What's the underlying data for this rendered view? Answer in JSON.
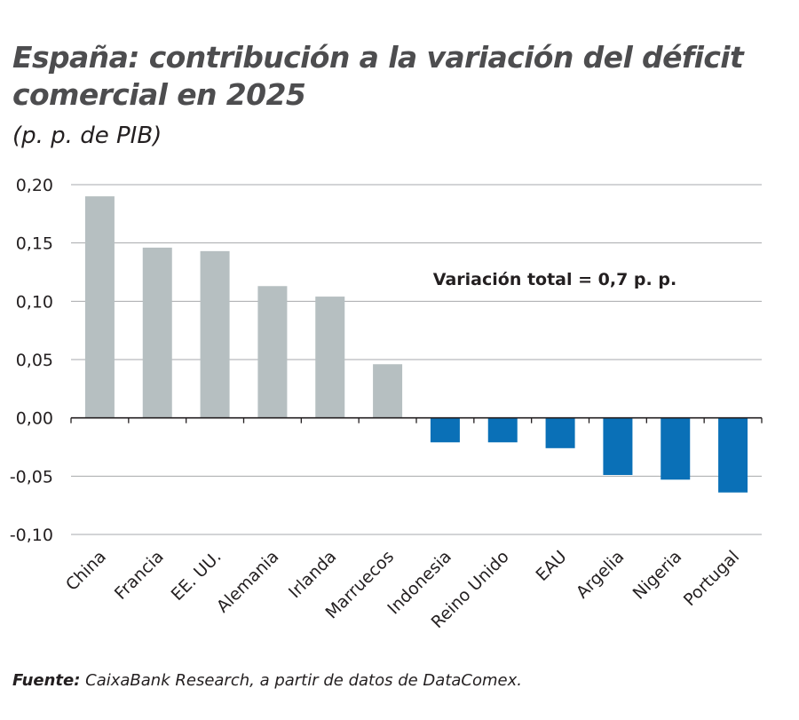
{
  "title": "España: contribución a la variación del déficit comercial en 2025",
  "subtitle": "(p. p. de PIB)",
  "source": {
    "label": "Fuente:",
    "text": " CaixaBank Research, a partir de datos de DataComex."
  },
  "colors": {
    "positive": "#b6bfc1",
    "negative": "#0a70b7",
    "grid": "#a7a9ac",
    "axis": "#231f20"
  },
  "chart_data": {
    "type": "bar",
    "title": "España: contribución a la variación del déficit comercial en 2025",
    "subtitle": "(p. p. de PIB)",
    "categories": [
      "China",
      "Francia",
      "EE. UU.",
      "Alemania",
      "Irlanda",
      "Marruecos",
      "Indonesia",
      "Reino Unido",
      "EAU",
      "Argelia",
      "Nigeria",
      "Portugal"
    ],
    "values": [
      0.19,
      0.146,
      0.143,
      0.113,
      0.104,
      0.046,
      -0.021,
      -0.021,
      -0.026,
      -0.049,
      -0.053,
      -0.064
    ],
    "ylim": [
      -0.1,
      0.2
    ],
    "yticks": [
      0.2,
      0.15,
      0.1,
      0.05,
      0.0,
      -0.05,
      -0.1
    ],
    "ytick_labels": [
      "0,20",
      "0,15",
      "0,10",
      "0,05",
      "0,00",
      "-0,05",
      "-0,10"
    ],
    "xlabel": "",
    "ylabel": "",
    "grid": true,
    "legend": "none",
    "annotation": "Variación total = 0,7 p. p."
  }
}
